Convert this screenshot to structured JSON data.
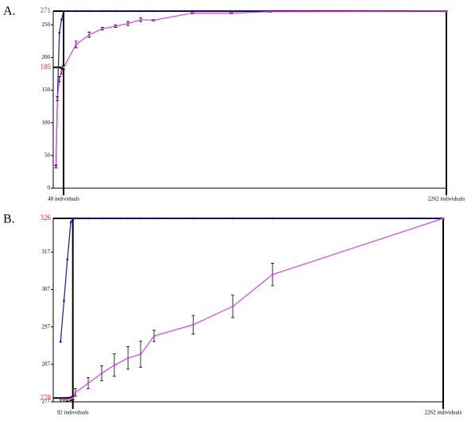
{
  "chart_data": [
    {
      "type": "line",
      "label": "A.",
      "x": [
        4,
        12,
        24,
        36,
        48,
        120,
        196,
        272,
        348,
        420,
        494,
        567,
        792,
        1017,
        1243,
        2262
      ],
      "series": [
        {
          "color": "#1a1a8c",
          "values": [
            35,
            137,
            238,
            258,
            271,
            271,
            271,
            271,
            271,
            271,
            271,
            271,
            271,
            271,
            271,
            271
          ]
        },
        {
          "color": "#e040e0",
          "values": [
            33,
            137,
            167,
            179,
            185,
            220,
            235,
            244,
            248,
            252,
            258,
            257,
            268,
            268,
            270,
            271
          ],
          "errors": [
            2,
            3,
            4,
            4,
            3,
            5,
            4,
            2,
            2,
            3,
            3,
            1,
            1,
            1,
            1,
            0
          ]
        }
      ],
      "xlim": [
        -12,
        2262
      ],
      "xticks": [
        {
          "value": 48,
          "label": "48 individuals"
        },
        {
          "value": 2262,
          "label": "2262 individuals"
        }
      ],
      "ylim": [
        0,
        271
      ],
      "yticks": [
        0,
        50,
        100,
        150,
        200,
        250
      ],
      "highlight_yticks": [
        185,
        271
      ]
    },
    {
      "type": "line",
      "label": "B.",
      "x": [
        20,
        40,
        60,
        80,
        92,
        107,
        182,
        261,
        335,
        415,
        489,
        568,
        797,
        1029,
        1262,
        2262
      ],
      "series": [
        {
          "color": "#1a1a8c",
          "values": [
            293,
            304,
            315,
            325,
            326,
            326,
            326,
            326,
            326,
            326,
            326,
            326,
            326,
            326,
            326,
            326
          ]
        },
        {
          "color": "#e040e0",
          "values": [
            277.5,
            277.5,
            277.7,
            277.8,
            278,
            279.5,
            282,
            284.6,
            286.8,
            288.7,
            289.7,
            294.6,
            297.6,
            302.5,
            311,
            326
          ],
          "errors": [
            0.5,
            0.5,
            0.5,
            0.5,
            0.5,
            1,
            1.5,
            2,
            3,
            3,
            3.5,
            1.5,
            2.5,
            3,
            3,
            0
          ]
        }
      ],
      "xlim": [
        -23,
        2262
      ],
      "xticks": [
        {
          "value": 92,
          "label": "92 individuals"
        },
        {
          "value": 2262,
          "label": "2262 individuals"
        }
      ],
      "ylim": [
        277,
        326
      ],
      "yticks": [
        277,
        287,
        297,
        307,
        317
      ],
      "highlight_yticks": [
        278,
        326
      ]
    }
  ]
}
